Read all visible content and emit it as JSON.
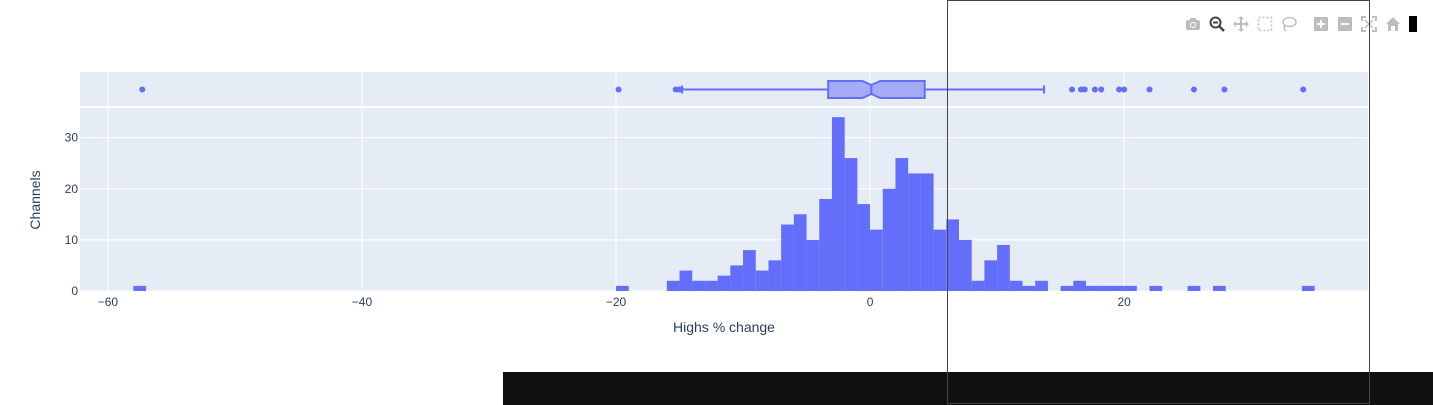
{
  "chart_data": {
    "type": "histogram",
    "xlabel": "Highs % change",
    "ylabel": "Channels",
    "xlim": [
      -62.2,
      39.2
    ],
    "ylim": [
      0,
      35.8
    ],
    "x_ticks": [
      {
        "value": -60,
        "label": "−60"
      },
      {
        "value": -40,
        "label": "−40"
      },
      {
        "value": -20,
        "label": "−20"
      },
      {
        "value": 0,
        "label": "0"
      },
      {
        "value": 20,
        "label": "20"
      }
    ],
    "y_ticks": [
      {
        "value": 0,
        "label": "0"
      },
      {
        "value": 10,
        "label": "10"
      },
      {
        "value": 20,
        "label": "20"
      },
      {
        "value": 30,
        "label": "30"
      }
    ],
    "bin_width": 1,
    "bins": [
      {
        "x0": -58,
        "count": 1
      },
      {
        "x0": -20,
        "count": 1
      },
      {
        "x0": -16,
        "count": 2
      },
      {
        "x0": -15,
        "count": 4
      },
      {
        "x0": -14,
        "count": 2
      },
      {
        "x0": -13,
        "count": 2
      },
      {
        "x0": -12,
        "count": 3
      },
      {
        "x0": -11,
        "count": 5
      },
      {
        "x0": -10,
        "count": 8
      },
      {
        "x0": -9,
        "count": 4
      },
      {
        "x0": -8,
        "count": 6
      },
      {
        "x0": -7,
        "count": 13
      },
      {
        "x0": -6,
        "count": 15
      },
      {
        "x0": -5,
        "count": 10
      },
      {
        "x0": -4,
        "count": 18
      },
      {
        "x0": -3,
        "count": 34
      },
      {
        "x0": -2,
        "count": 26
      },
      {
        "x0": -1,
        "count": 17
      },
      {
        "x0": 0,
        "count": 12
      },
      {
        "x0": 1,
        "count": 20
      },
      {
        "x0": 2,
        "count": 26
      },
      {
        "x0": 3,
        "count": 23
      },
      {
        "x0": 4,
        "count": 23
      },
      {
        "x0": 5,
        "count": 12
      },
      {
        "x0": 6,
        "count": 14
      },
      {
        "x0": 7,
        "count": 10
      },
      {
        "x0": 8,
        "count": 2
      },
      {
        "x0": 9,
        "count": 6
      },
      {
        "x0": 10,
        "count": 9
      },
      {
        "x0": 11,
        "count": 2
      },
      {
        "x0": 12,
        "count": 1
      },
      {
        "x0": 13,
        "count": 2
      },
      {
        "x0": 15,
        "count": 1
      },
      {
        "x0": 16,
        "count": 2
      },
      {
        "x0": 17,
        "count": 1
      },
      {
        "x0": 18,
        "count": 1
      },
      {
        "x0": 19,
        "count": 1
      },
      {
        "x0": 20,
        "count": 1
      },
      {
        "x0": 22,
        "count": 1
      },
      {
        "x0": 25,
        "count": 1
      },
      {
        "x0": 27,
        "count": 1
      },
      {
        "x0": 34,
        "count": 1
      }
    ],
    "marginal_box": {
      "q1": -3.3,
      "median": 0.1,
      "q3": 4.3,
      "notch_low": -0.6,
      "notch_high": 0.8,
      "lower_fence": -14.8,
      "upper_fence": 13.7,
      "outliers": [
        -57.3,
        -19.8,
        -15.3,
        -15.0,
        15.9,
        16.6,
        16.9,
        17.7,
        18.2,
        19.6,
        20.0,
        22.0,
        25.5,
        27.9,
        34.1
      ]
    },
    "colors": {
      "bar": "#636efa",
      "box_fill": "#a5abf7",
      "plot_bg": "#e5ecf6",
      "grid": "#ffffff",
      "text": "#2a3f5f"
    }
  },
  "modebar": {
    "buttons": [
      "camera-icon",
      "zoom-icon",
      "pan-icon",
      "box-select-icon",
      "lasso-icon",
      "zoom-in-icon",
      "zoom-out-icon",
      "autoscale-icon",
      "home-icon"
    ]
  }
}
